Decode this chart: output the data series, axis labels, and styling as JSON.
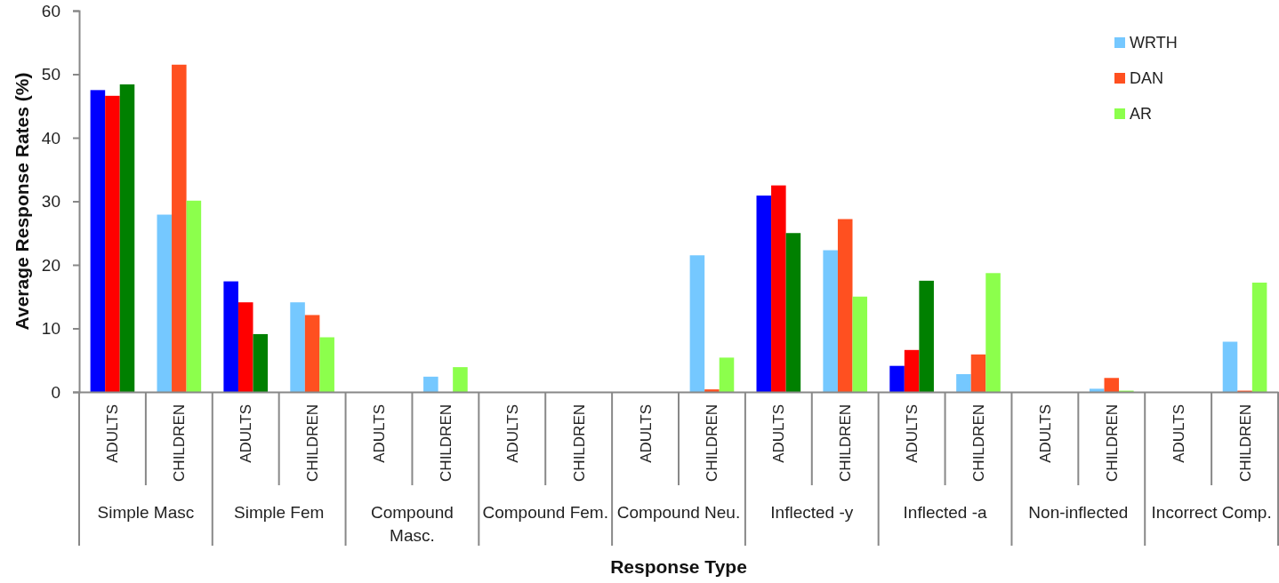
{
  "chart_data": {
    "type": "bar",
    "ylabel": "Average Response Rates (%)",
    "xlabel": "Response Type",
    "categories": [
      "ADULTS",
      "CHILDREN",
      "ADULTS",
      "CHILDREN",
      "ADULTS",
      "CHILDREN",
      "ADULTS",
      "CHILDREN",
      "ADULTS",
      "CHILDREN",
      "ADULTS",
      "CHILDREN",
      "ADULTS",
      "CHILDREN",
      "ADULTS",
      "CHILDREN",
      "ADULTS",
      "CHILDREN"
    ],
    "annotations": [
      "Simple Masc",
      "Simple Fem",
      "Compound Masc.",
      "Compound Fem.",
      "Compound Neu.",
      "Inflected -y",
      "Inflected -a",
      "Non-inflected",
      "Incorrect Comp."
    ],
    "series": [
      {
        "name": "WRTH",
        "color": "#75c8ff",
        "colors": [
          "#0000ff",
          "#75c8ff",
          "#0000ff",
          "#75c8ff",
          "#0000ff",
          "#75c8ff",
          "#0000ff",
          "#75c8ff",
          "#0000ff",
          "#75c8ff",
          "#0000ff",
          "#75c8ff",
          "#0000ff",
          "#75c8ff",
          "#0000ff",
          "#75c8ff",
          "#0000ff",
          "#75c8ff"
        ],
        "values": [
          47.5,
          27.9,
          17.4,
          14.1,
          0,
          2.4,
          0,
          0,
          0,
          21.5,
          30.9,
          22.3,
          4.1,
          2.8,
          0,
          0.5,
          0,
          7.9
        ]
      },
      {
        "name": "DAN",
        "color": "#ff5020",
        "colors": [
          "#ff0000",
          "#ff5020",
          "#ff0000",
          "#ff5020",
          "#ff0000",
          "#ff5020",
          "#ff0000",
          "#ff5020",
          "#ff0000",
          "#ff5020",
          "#ff0000",
          "#ff5020",
          "#ff0000",
          "#ff5020",
          "#ff0000",
          "#ff5020",
          "#ff0000",
          "#ff5020"
        ],
        "values": [
          46.6,
          51.5,
          14.1,
          12.1,
          0,
          0,
          0,
          0,
          0,
          0.4,
          32.5,
          27.2,
          6.6,
          5.9,
          0,
          2.2,
          0,
          0.2
        ]
      },
      {
        "name": "AR",
        "color": "#8cff4c",
        "colors": [
          "#008000",
          "#8cff4c",
          "#008000",
          "#8cff4c",
          "#008000",
          "#8cff4c",
          "#008000",
          "#8cff4c",
          "#008000",
          "#8cff4c",
          "#008000",
          "#8cff4c",
          "#008000",
          "#8cff4c",
          "#008000",
          "#8cff4c",
          "#008000",
          "#8cff4c"
        ],
        "values": [
          48.4,
          30.1,
          9.1,
          8.6,
          0,
          3.9,
          0,
          0,
          0,
          5.4,
          25.0,
          15.0,
          17.5,
          18.7,
          0,
          0.2,
          0,
          17.2
        ]
      }
    ],
    "ylim": [
      0,
      60
    ],
    "yticks": [
      0,
      10,
      20,
      30,
      40,
      50,
      60
    ],
    "legend": "top right"
  }
}
